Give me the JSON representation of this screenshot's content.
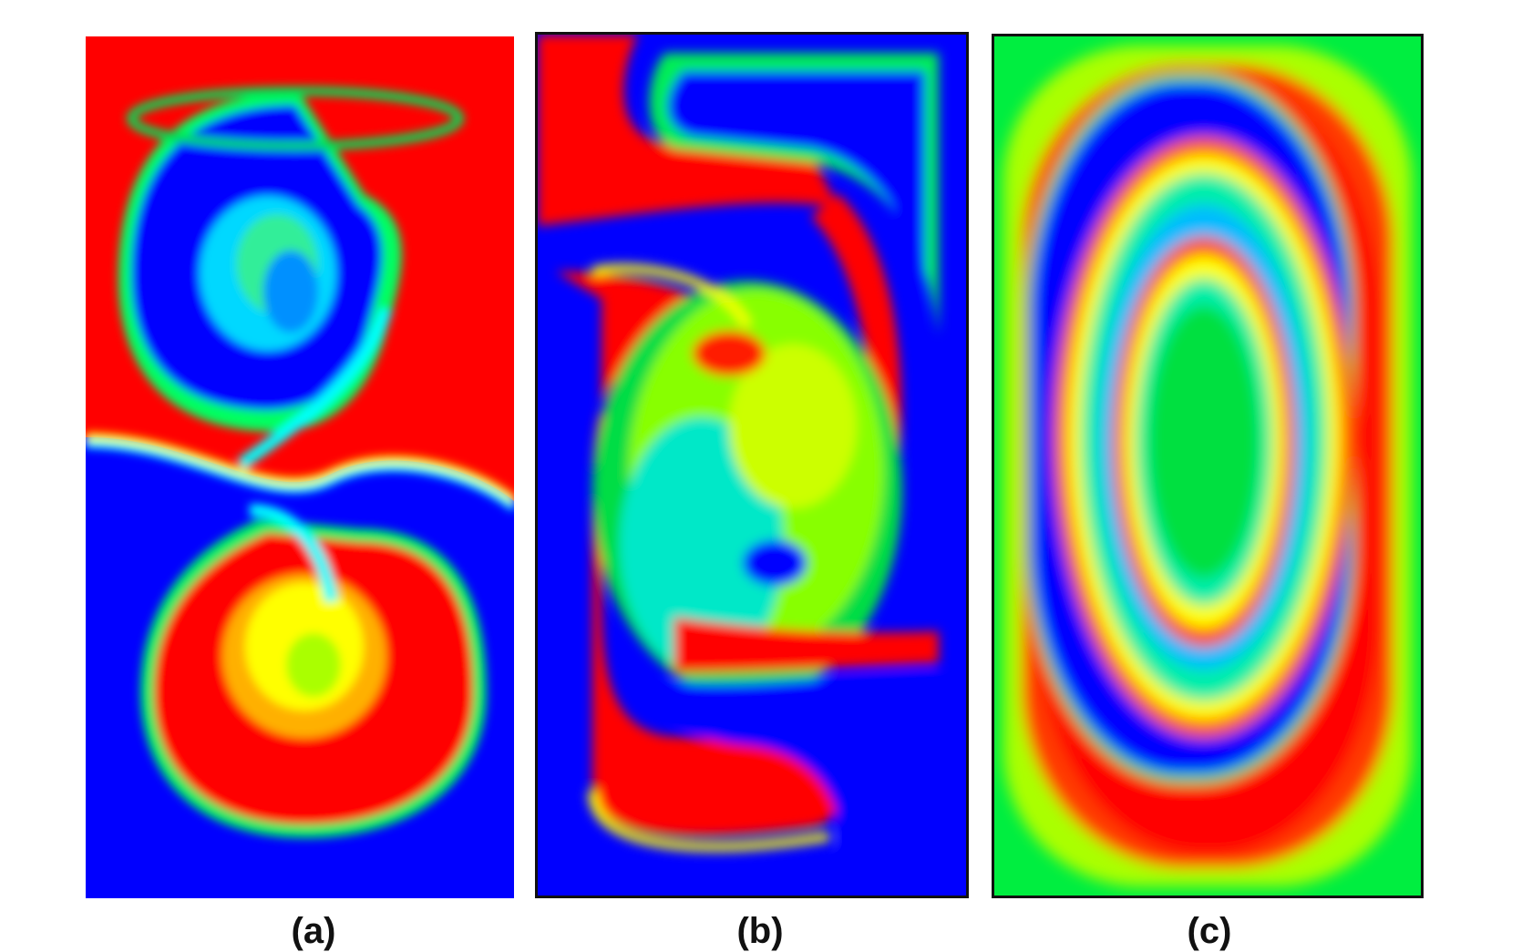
{
  "figure": {
    "panels": [
      {
        "id": "a",
        "caption": "(a)"
      },
      {
        "id": "b",
        "caption": "(b)"
      },
      {
        "id": "c",
        "caption": "(c)"
      }
    ],
    "colormap": {
      "red": "#ff0000",
      "orange": "#ff7f00",
      "yellow": "#ffff00",
      "green": "#00e000",
      "cyan": "#00ffff",
      "blue": "#0000ff"
    }
  }
}
